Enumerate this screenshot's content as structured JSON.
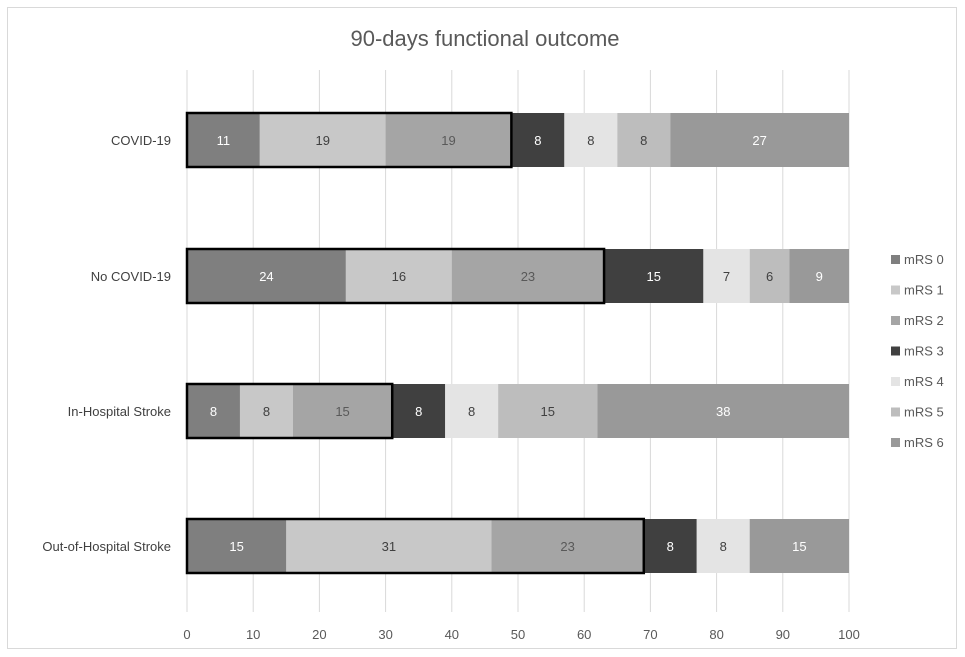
{
  "chart_data": {
    "type": "bar",
    "orientation": "horizontal",
    "stacked": true,
    "title": "90-days functional outcome",
    "categories": [
      "COVID-19",
      "No COVID-19",
      "In-Hospital Stroke",
      "Out-of-Hospital Stroke"
    ],
    "series": [
      {
        "name": "mRS 0",
        "color": "#7f7f7f",
        "label_color": "#ffffff",
        "values": [
          11,
          24,
          8,
          15
        ]
      },
      {
        "name": "mRS 1",
        "color": "#c8c8c8",
        "label_color": "#404040",
        "values": [
          19,
          16,
          8,
          31
        ]
      },
      {
        "name": "mRS 2",
        "color": "#a5a5a5",
        "label_color": "#595959",
        "values": [
          19,
          23,
          15,
          23
        ]
      },
      {
        "name": "mRS 3",
        "color": "#404040",
        "label_color": "#ffffff",
        "values": [
          8,
          15,
          8,
          8
        ]
      },
      {
        "name": "mRS 4",
        "color": "#e4e4e4",
        "label_color": "#404040",
        "values": [
          8,
          7,
          8,
          8
        ]
      },
      {
        "name": "mRS 5",
        "color": "#bdbdbd",
        "label_color": "#404040",
        "values": [
          8,
          6,
          15,
          0
        ]
      },
      {
        "name": "mRS 6",
        "color": "#999999",
        "label_color": "#ffffff",
        "values": [
          27,
          9,
          38,
          15
        ]
      }
    ],
    "highlight_outline": {
      "covers_series": [
        "mRS 0",
        "mRS 1",
        "mRS 2"
      ],
      "color": "#000000"
    },
    "xlim": [
      0,
      100
    ],
    "xticks": [
      0,
      10,
      20,
      30,
      40,
      50,
      60,
      70,
      80,
      90,
      100
    ],
    "grid": "vertical",
    "legend_position": "right"
  }
}
